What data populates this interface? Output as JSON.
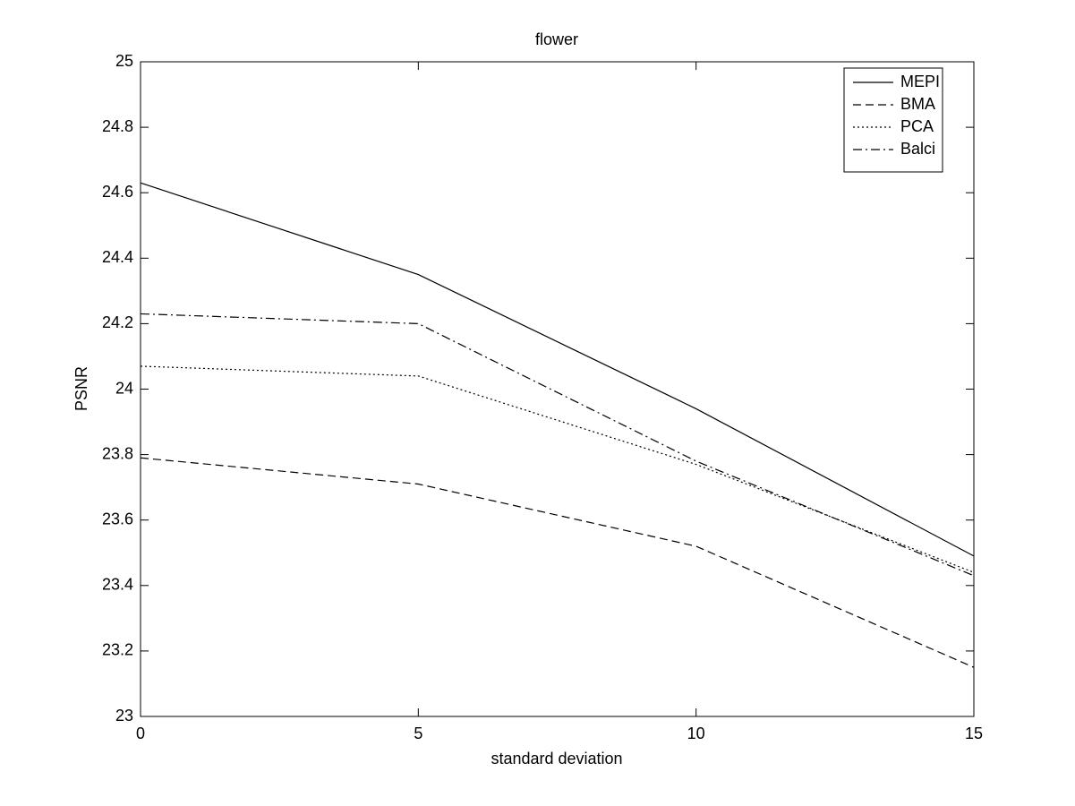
{
  "chart_data": {
    "type": "line",
    "title": "flower",
    "xlabel": "standard deviation",
    "ylabel": "PSNR",
    "x": [
      0,
      5,
      10,
      15
    ],
    "series": [
      {
        "name": "MEPI",
        "color": "#000000",
        "linestyle": "solid",
        "values": [
          24.63,
          24.35,
          23.94,
          23.49
        ]
      },
      {
        "name": "BMA",
        "color": "#000000",
        "linestyle": "dashed",
        "values": [
          23.79,
          23.71,
          23.52,
          23.15
        ]
      },
      {
        "name": "PCA",
        "color": "#000000",
        "linestyle": "dotted",
        "values": [
          24.07,
          24.04,
          23.77,
          23.44
        ]
      },
      {
        "name": "Balci",
        "color": "#000000",
        "linestyle": "dashdot",
        "values": [
          24.23,
          24.2,
          23.78,
          23.43
        ]
      }
    ],
    "xlim": [
      0,
      15
    ],
    "xticks": [
      0,
      5,
      10,
      15
    ],
    "ylim": [
      23,
      25
    ],
    "yticks": [
      23,
      23.2,
      23.4,
      23.6,
      23.8,
      24,
      24.2,
      24.4,
      24.6,
      24.8,
      25
    ],
    "grid": false,
    "legend": "upper right"
  }
}
